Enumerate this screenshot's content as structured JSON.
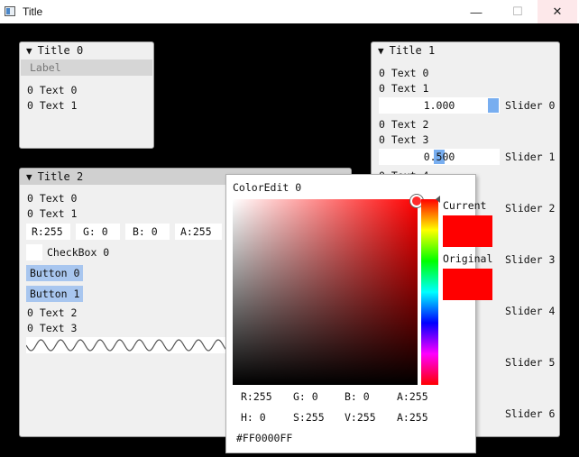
{
  "app": {
    "title": "Title",
    "minimize_glyph": "—",
    "maximize_glyph": "☐",
    "close_glyph": "✕"
  },
  "win0": {
    "title": "Title 0",
    "label": "Label",
    "texts": [
      "0 Text 0",
      "0 Text 1"
    ]
  },
  "win1": {
    "title": "Title 1",
    "texts": [
      "0 Text 0",
      "0 Text 1",
      "0 Text 2",
      "0 Text 3",
      "0 Text 4"
    ],
    "sliders": [
      {
        "value": "1.000",
        "label": "Slider 0",
        "fraction": 1.0
      },
      {
        "value": "0.500",
        "label": "Slider 1",
        "fraction": 0.5
      },
      {
        "label": "Slider 2"
      },
      {
        "label": "Slider 3"
      },
      {
        "label": "Slider 4"
      },
      {
        "label": "Slider 5"
      },
      {
        "label": "Slider 6"
      }
    ]
  },
  "win2": {
    "title": "Title 2",
    "texts": [
      "0 Text 0",
      "0 Text 1",
      "0 Text 2",
      "0 Text 3"
    ],
    "rgba": [
      "R:255",
      "G:  0",
      "B:  0",
      "A:255"
    ],
    "checkbox_label": "CheckBox 0",
    "buttons": [
      "Button 0",
      "Button 1"
    ]
  },
  "color_edit": {
    "title": "ColorEdit 0",
    "current_label": "Current",
    "original_label": "Original",
    "rgba": [
      "R:255",
      "G:  0",
      "B:  0",
      "A:255"
    ],
    "hsva": [
      "H:  0",
      "S:255",
      "V:255",
      "A:255"
    ],
    "hex": "#FF0000FF",
    "current_color": "#FF0000",
    "original_color": "#FF0000"
  }
}
